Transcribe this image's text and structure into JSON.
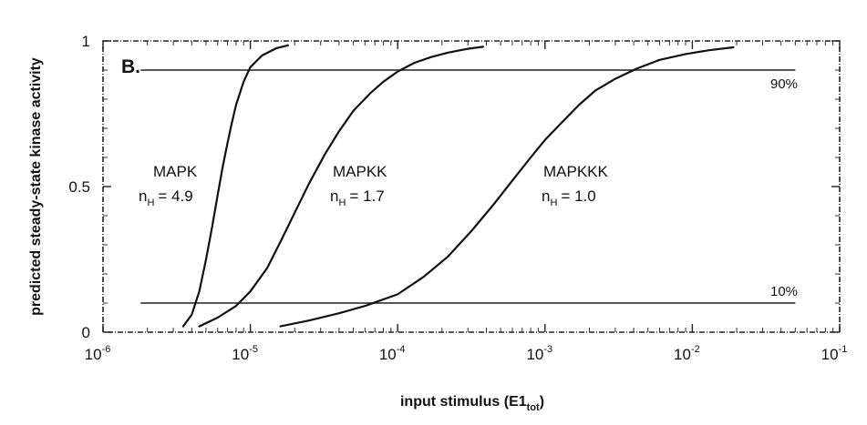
{
  "chart_data": {
    "type": "line",
    "panel_label": "B.",
    "xlabel": "input stimulus (E1",
    "xlabel_sub": "tot",
    "xlabel_close": ")",
    "ylabel": "predicted steady-state kinase activity",
    "x_scale": "log",
    "xlim": [
      1e-06,
      0.1
    ],
    "ylim": [
      0,
      1
    ],
    "x_ticks": [
      {
        "value": 1e-06,
        "base": "10",
        "exp": "-6"
      },
      {
        "value": 1e-05,
        "base": "10",
        "exp": "-5"
      },
      {
        "value": 0.0001,
        "base": "10",
        "exp": "-4"
      },
      {
        "value": 0.001,
        "base": "10",
        "exp": "-3"
      },
      {
        "value": 0.01,
        "base": "10",
        "exp": "-2"
      },
      {
        "value": 0.1,
        "base": "10",
        "exp": "-1"
      }
    ],
    "y_ticks": [
      {
        "value": 0,
        "label": "0"
      },
      {
        "value": 0.5,
        "label": "0.5"
      },
      {
        "value": 1,
        "label": "1"
      }
    ],
    "reference_lines": [
      {
        "y": 0.9,
        "label": "90%",
        "x_start": 1.8e-06,
        "x_end": 0.05
      },
      {
        "y": 0.1,
        "label": "10%",
        "x_start": 1.8e-06,
        "x_end": 0.05
      }
    ],
    "series": [
      {
        "name": "MAPK",
        "hill_label": "n",
        "hill_sub": "H",
        "hill_value": "= 4.9",
        "x": [
          3.5e-06,
          4e-06,
          4.5e-06,
          5e-06,
          5.5e-06,
          6e-06,
          6.5e-06,
          7e-06,
          7.5e-06,
          8e-06,
          9e-06,
          1e-05,
          1.2e-05,
          1.5e-05,
          1.8e-05
        ],
        "y": [
          0.02,
          0.06,
          0.14,
          0.25,
          0.36,
          0.47,
          0.57,
          0.65,
          0.72,
          0.78,
          0.86,
          0.91,
          0.95,
          0.975,
          0.985
        ]
      },
      {
        "name": "MAPKK",
        "hill_label": "n",
        "hill_sub": "H",
        "hill_value": "= 1.7",
        "x": [
          4.5e-06,
          6e-06,
          8e-06,
          1e-05,
          1.3e-05,
          1.6e-05,
          2e-05,
          2.5e-05,
          3.2e-05,
          4e-05,
          5e-05,
          6.5e-05,
          8e-05,
          0.0001,
          0.00013,
          0.00017,
          0.00022,
          0.0003,
          0.00038
        ],
        "y": [
          0.02,
          0.05,
          0.09,
          0.14,
          0.22,
          0.31,
          0.41,
          0.51,
          0.61,
          0.69,
          0.76,
          0.82,
          0.86,
          0.895,
          0.925,
          0.945,
          0.96,
          0.973,
          0.98
        ]
      },
      {
        "name": "MAPKKK",
        "hill_label": "n",
        "hill_sub": "H",
        "hill_value": "= 1.0",
        "x": [
          1.6e-05,
          2.5e-05,
          4e-05,
          6e-05,
          0.0001,
          0.00015,
          0.00022,
          0.00032,
          0.00045,
          0.0006,
          0.0008,
          0.001,
          0.0013,
          0.0017,
          0.0022,
          0.003,
          0.0042,
          0.006,
          0.009,
          0.013,
          0.019
        ],
        "y": [
          0.02,
          0.04,
          0.065,
          0.09,
          0.13,
          0.19,
          0.26,
          0.35,
          0.44,
          0.52,
          0.6,
          0.66,
          0.72,
          0.78,
          0.83,
          0.87,
          0.905,
          0.935,
          0.955,
          0.968,
          0.978
        ]
      }
    ],
    "grid": false,
    "legend": "none"
  }
}
